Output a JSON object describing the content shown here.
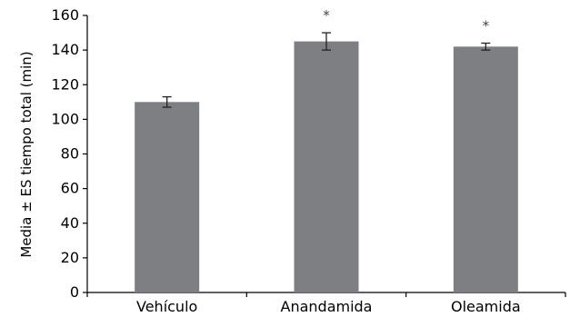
{
  "chart_data": {
    "type": "bar",
    "categories": [
      "Vehículo",
      "Anandamida",
      "Oleamida"
    ],
    "values": [
      110,
      145,
      142
    ],
    "errors": [
      3,
      5,
      2
    ],
    "significance": [
      "",
      "*",
      "*"
    ],
    "ylabel": "Media ± ES tiempo total (min)",
    "ylim": [
      0,
      160
    ],
    "yticks": [
      0,
      20,
      40,
      60,
      80,
      100,
      120,
      140,
      160
    ],
    "grid": false,
    "legend": "none",
    "colors": {
      "bar": "#7d7f82",
      "axis": "#000000",
      "error_bar": "#222222",
      "sig_mark": "#444444"
    }
  }
}
